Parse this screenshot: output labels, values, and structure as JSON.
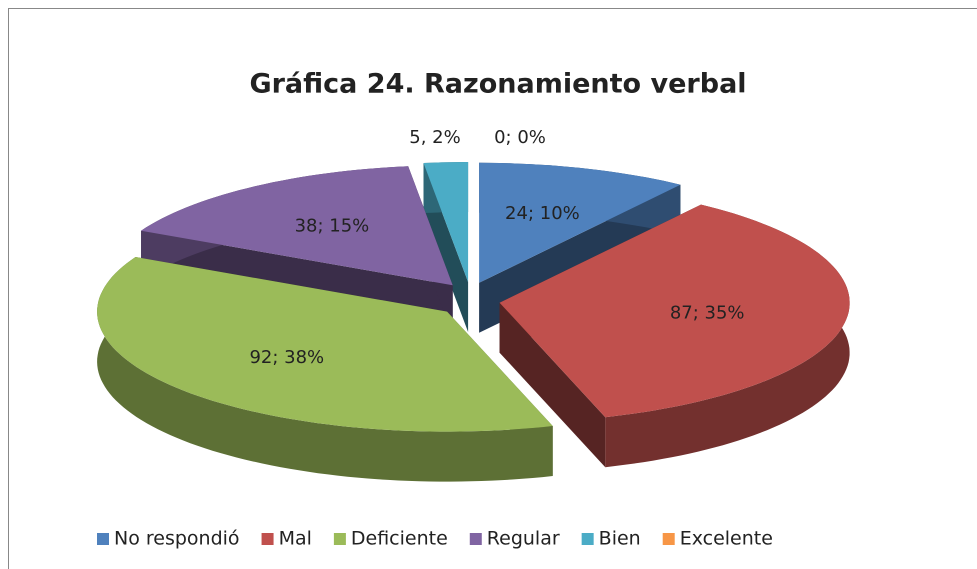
{
  "chart_data": {
    "type": "pie3d",
    "title": "Gráfica 24. Razonamiento verbal",
    "categories": [
      "No respondió",
      "Mal",
      "Deficiente",
      "Regular",
      "Bien",
      "Excelente"
    ],
    "values": [
      24,
      87,
      92,
      38,
      5,
      0
    ],
    "value_labels": [
      "24; 10%",
      "87; 35%",
      "92; 38%",
      "38; 15%",
      "5, 2%",
      "0; 0%"
    ],
    "colors": [
      "#4f81bd",
      "#c0504d",
      "#9bbb59",
      "#8064a2",
      "#4bacc6",
      "#f79646"
    ],
    "legend": "bottom"
  }
}
